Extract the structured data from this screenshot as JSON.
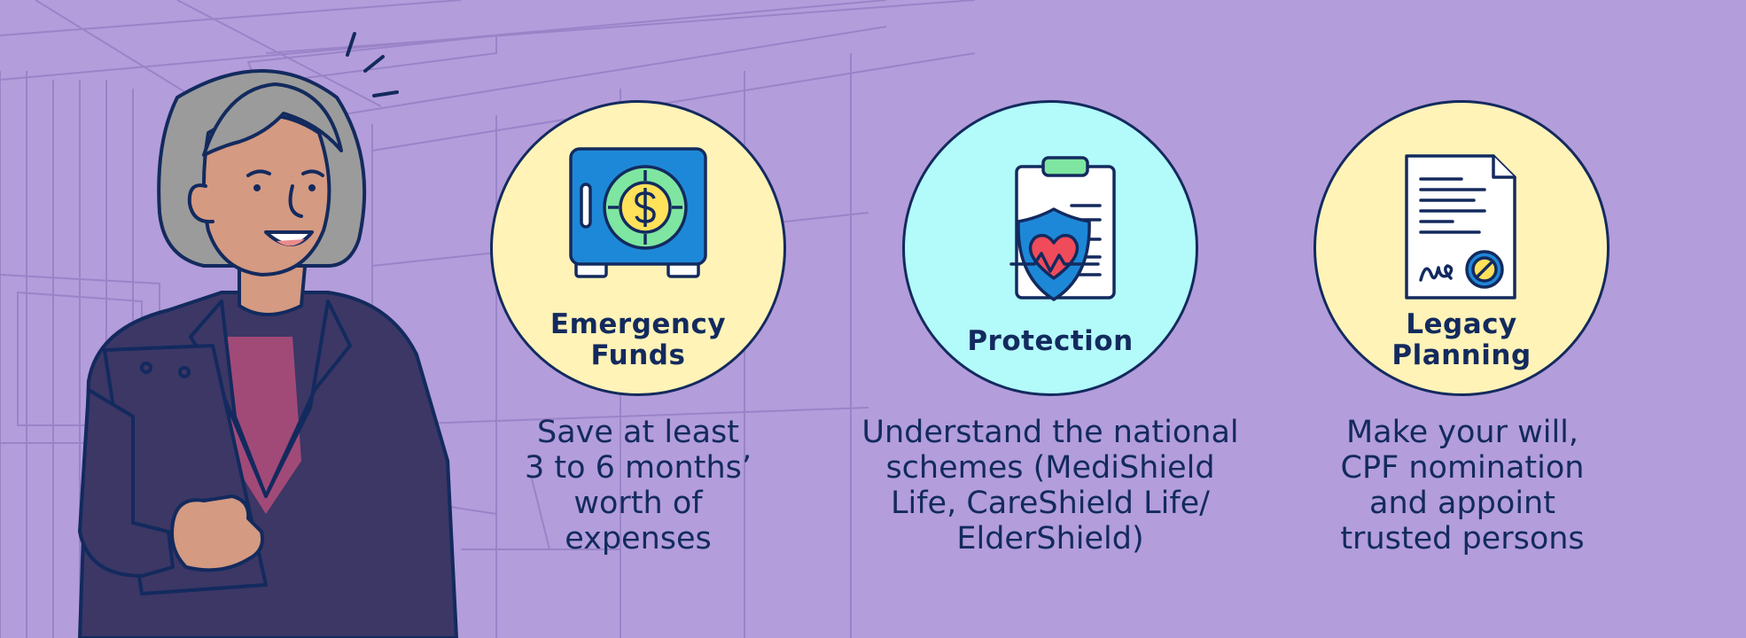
{
  "cards": [
    {
      "title": "Emergency\nFunds",
      "description": "Save at least\n3 to 6 months’\nworth of\nexpenses",
      "icon": "safe-dollar-icon",
      "circle_color": "#fff3b8"
    },
    {
      "title": "Protection",
      "description": "Understand the national\nschemes (MediShield\nLife, CareShield Life/\nElderShield)",
      "icon": "clipboard-shield-heart-icon",
      "circle_color": "#b3fafa"
    },
    {
      "title": "Legacy\nPlanning",
      "description": "Make your will,\nCPF nomination\nand appoint\ntrusted persons",
      "icon": "signed-document-icon",
      "circle_color": "#fff3b8"
    }
  ],
  "colors": {
    "background": "#b39ddb",
    "text": "#132a5e"
  }
}
